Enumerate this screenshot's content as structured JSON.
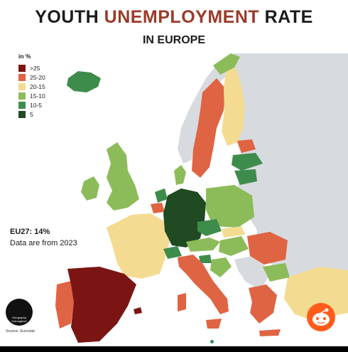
{
  "header": {
    "title_part1": "YOUTH ",
    "title_highlight": "UNEMPLOYMENT",
    "title_part2": " RATE",
    "subtitle": "IN EUROPE"
  },
  "legend": {
    "title": "in %",
    "items": [
      {
        "label": ">25",
        "color": "#7b1513"
      },
      {
        "label": "25-20",
        "color": "#df6443"
      },
      {
        "label": "20-15",
        "color": "#f3dc91"
      },
      {
        "label": "15-10",
        "color": "#8cbc5a"
      },
      {
        "label": "10-5",
        "color": "#3e8c4c"
      },
      {
        "label": "5",
        "color": "#1f4a22"
      }
    ]
  },
  "summary": {
    "eu_stat": "EU27: 14%",
    "note": "Data are from 2023"
  },
  "footer": {
    "logo_text": "Geography Unimagined",
    "source": "Source: Eurostat"
  },
  "colors": {
    "no_data": "#d7dbe0",
    "sea": "#ffffff",
    "title_highlight": "#9a3b2a"
  },
  "icons": {
    "logo": "globe-logo-icon",
    "reddit": "reddit-icon"
  }
}
